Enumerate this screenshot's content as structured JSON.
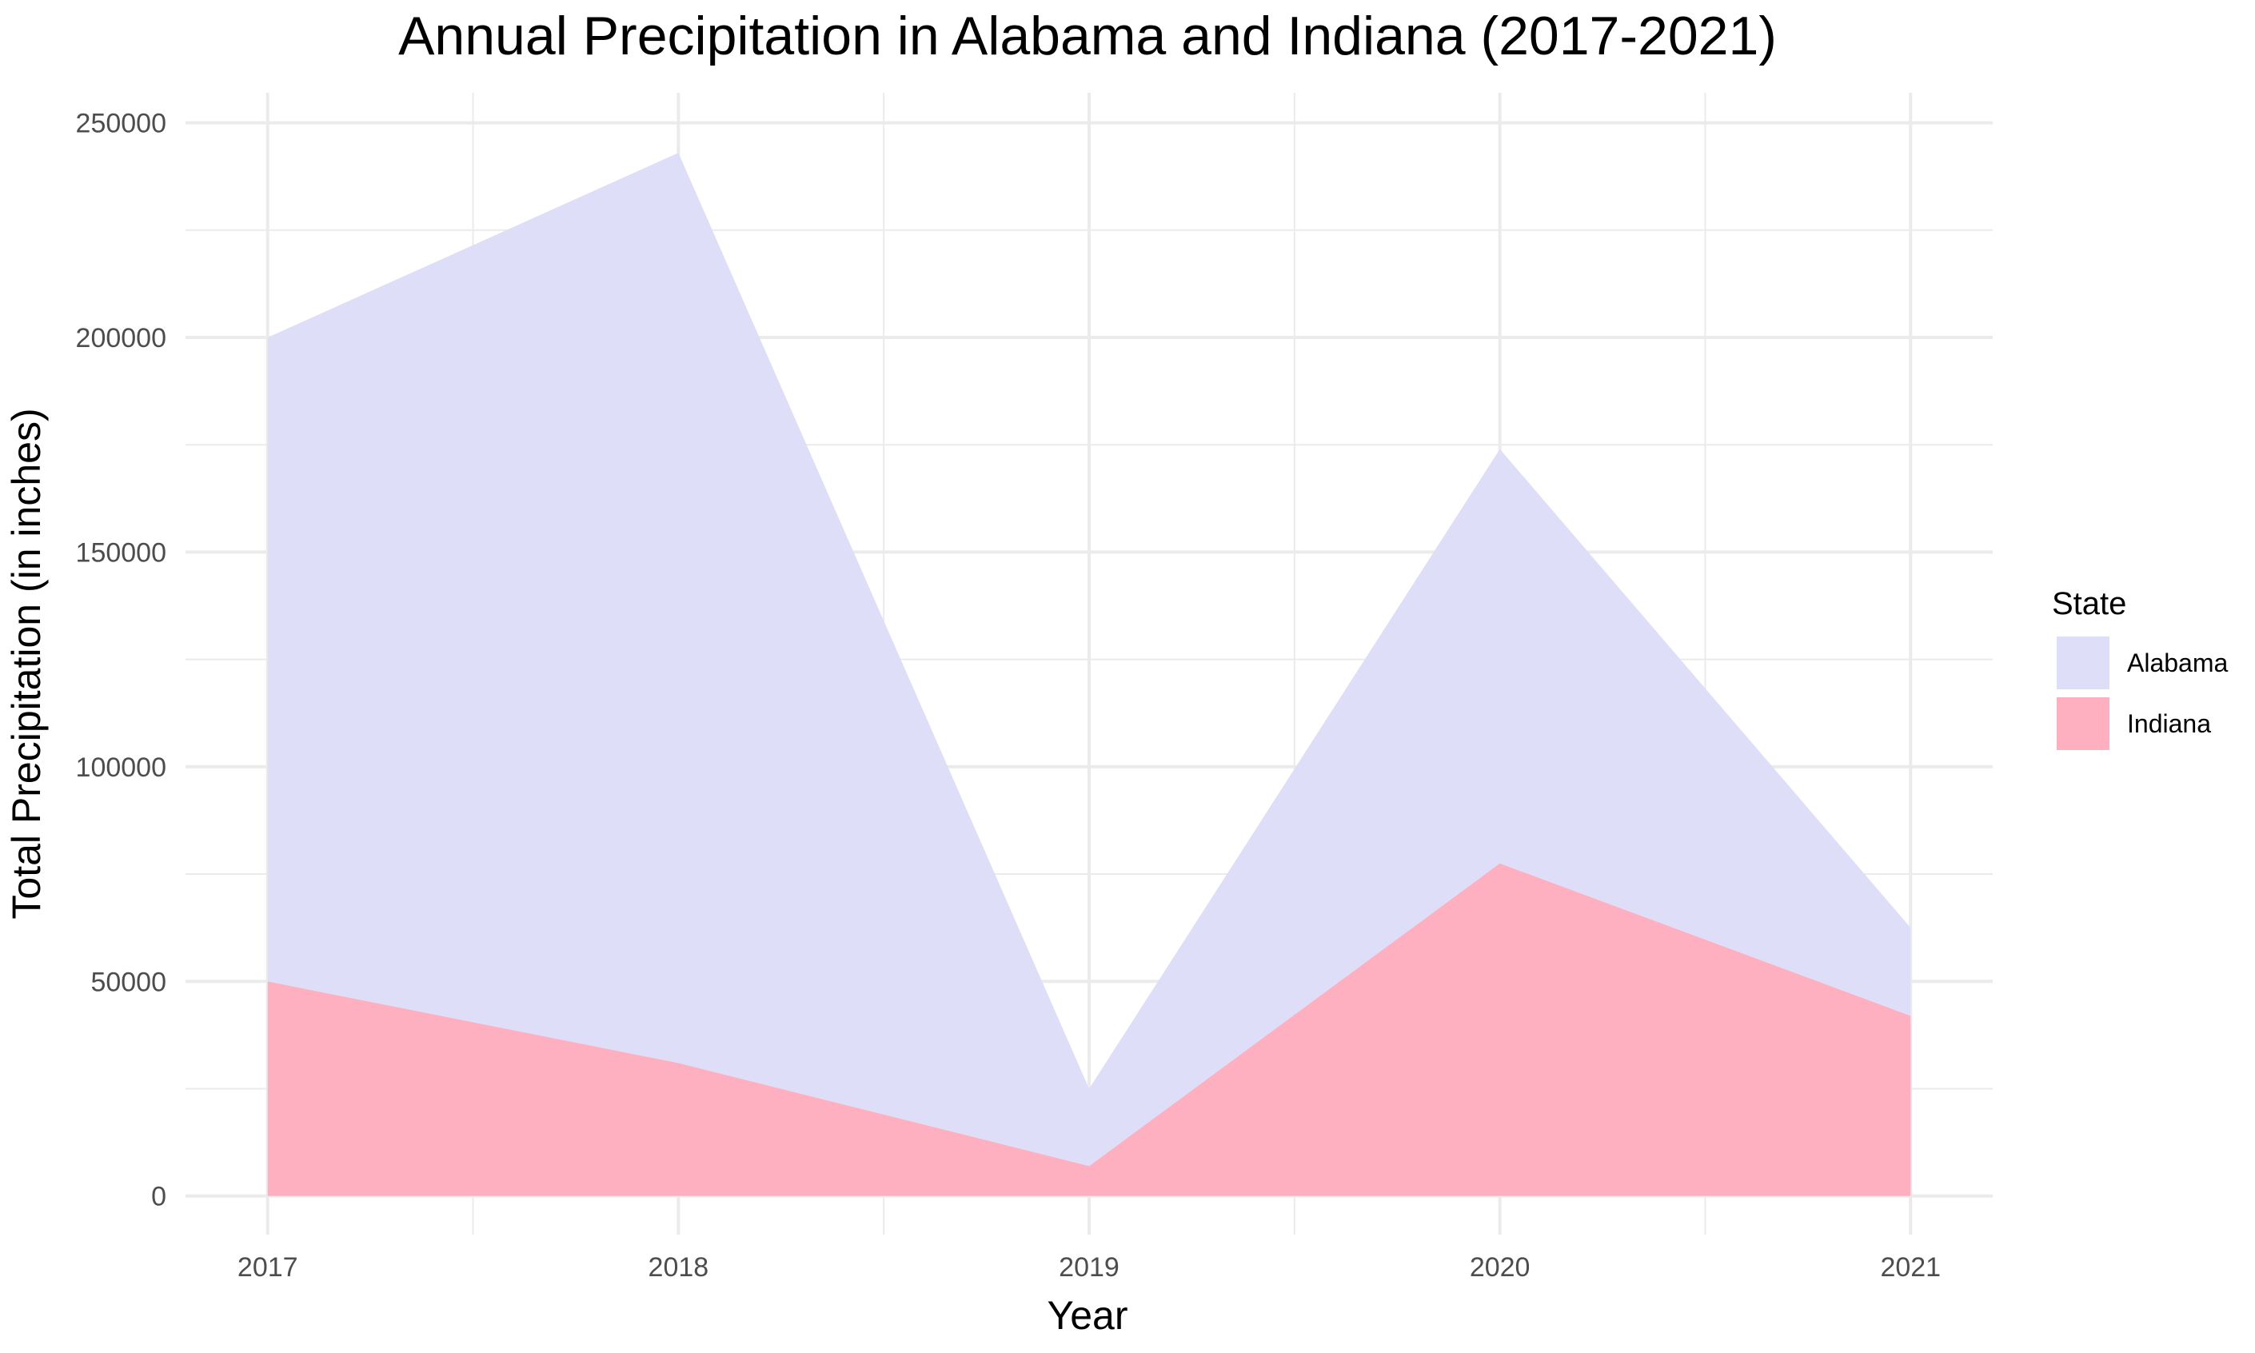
{
  "chart_data": {
    "type": "area",
    "stacked": true,
    "title": "Annual Precipitation in Alabama and Indiana (2017-2021)",
    "xlabel": "Year",
    "ylabel": "Total Precipitation (in inches)",
    "x": [
      2017,
      2018,
      2019,
      2020,
      2021
    ],
    "x_tick_labels": [
      "2017",
      "2018",
      "2019",
      "2020",
      "2021"
    ],
    "y_tick_values": [
      0,
      50000,
      100000,
      150000,
      200000,
      250000
    ],
    "y_tick_labels": [
      "0",
      "50000",
      "100000",
      "150000",
      "200000",
      "250000"
    ],
    "xlim": [
      2016.8,
      2021.2
    ],
    "ylim": [
      -9000,
      257000
    ],
    "grid": true,
    "legend": {
      "title": "State",
      "position": "right"
    },
    "series": [
      {
        "name": "Alabama",
        "color": "#dedef8",
        "values": [
          150000,
          212000,
          18000,
          96500,
          20500
        ]
      },
      {
        "name": "Indiana",
        "color": "#feb0c0",
        "values": [
          50000,
          31000,
          7000,
          77500,
          42000
        ]
      }
    ]
  }
}
